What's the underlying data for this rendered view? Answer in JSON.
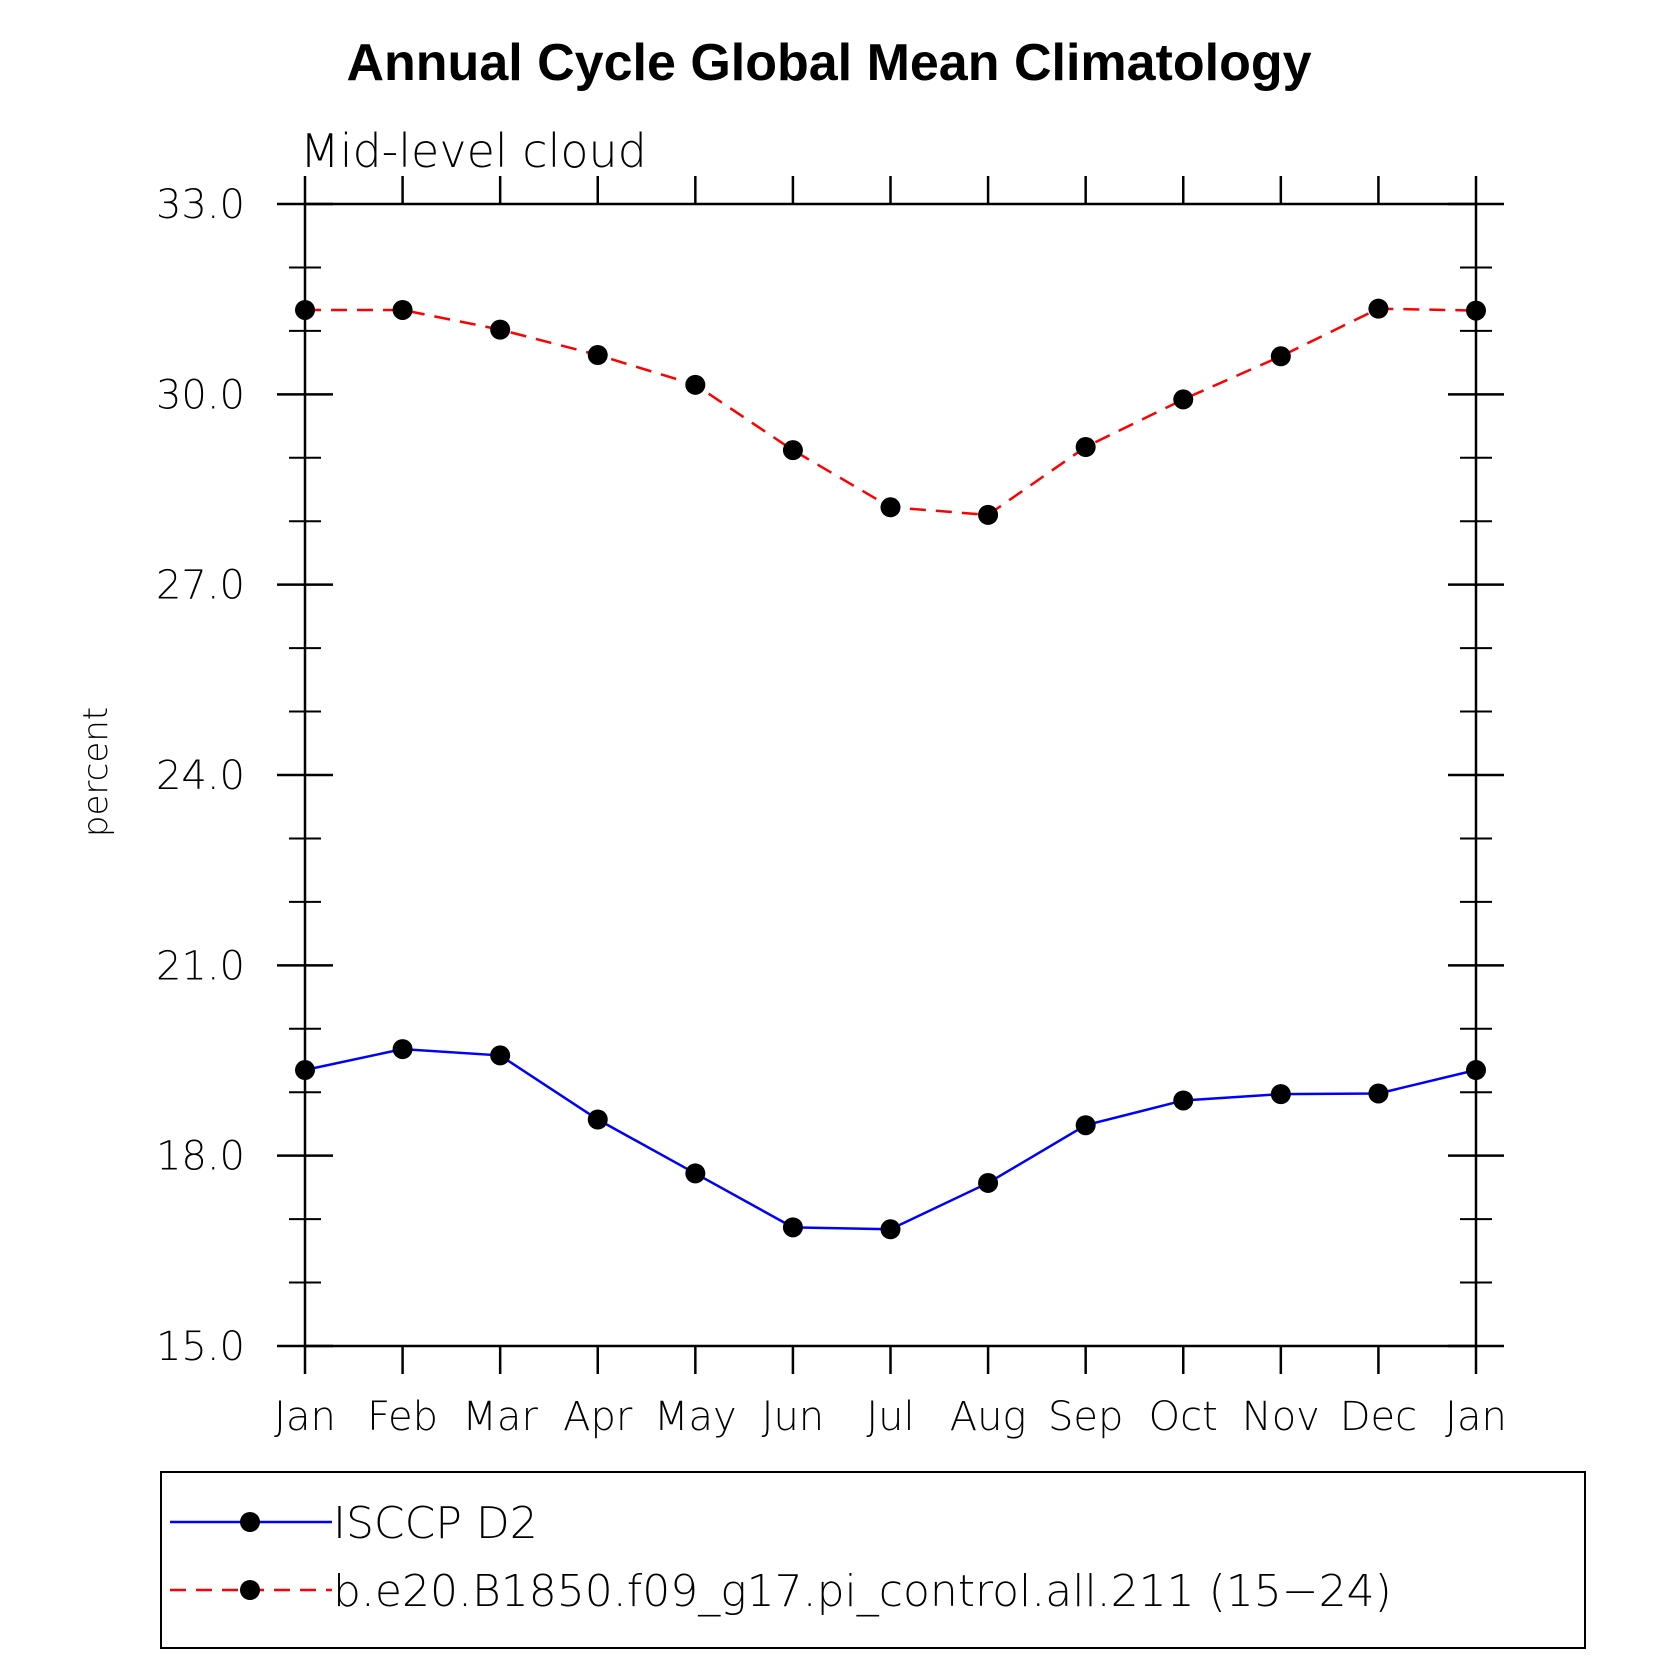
{
  "chart_data": {
    "type": "line",
    "title": "Annual Cycle Global Mean Climatology",
    "subtitle": "Mid-level cloud",
    "xlabel": "",
    "ylabel": "percent",
    "categories": [
      "Jan",
      "Feb",
      "Mar",
      "Apr",
      "May",
      "Jun",
      "Jul",
      "Aug",
      "Sep",
      "Oct",
      "Nov",
      "Dec",
      "Jan"
    ],
    "ylim": [
      15.0,
      33.0
    ],
    "yticks": [
      15.0,
      18.0,
      21.0,
      24.0,
      27.0,
      30.0,
      33.0
    ],
    "ytick_labels": [
      "15.0",
      "18.0",
      "21.0",
      "24.0",
      "27.0",
      "30.0",
      "33.0"
    ],
    "grid": false,
    "legend_position": "bottom",
    "series": [
      {
        "name": "ISCCP D2",
        "color": "#0000ff",
        "line_style": "solid",
        "marker": "filled-circle",
        "values": [
          19.35,
          19.68,
          19.58,
          18.57,
          17.72,
          16.87,
          16.84,
          17.57,
          18.48,
          18.87,
          18.97,
          18.98,
          19.35
        ]
      },
      {
        "name": "b.e20.B1850.f09_g17.pi_control.all.211 (15-24)",
        "color": "#ff0000",
        "line_style": "dashed",
        "marker": "filled-circle",
        "values": [
          31.33,
          31.33,
          31.02,
          30.62,
          30.15,
          29.12,
          28.22,
          28.1,
          29.17,
          29.92,
          30.6,
          31.35,
          31.32
        ]
      }
    ]
  },
  "legend": {
    "items": [
      {
        "label": "ISCCP D2"
      },
      {
        "label": "b.e20.B1850.f09_g17.pi_control.all.211 (15−24)"
      }
    ]
  }
}
